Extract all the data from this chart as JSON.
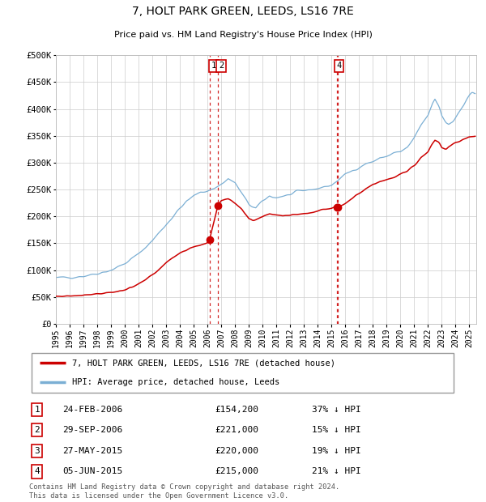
{
  "title": "7, HOLT PARK GREEN, LEEDS, LS16 7RE",
  "subtitle": "Price paid vs. HM Land Registry's House Price Index (HPI)",
  "ylim": [
    0,
    500000
  ],
  "yticks": [
    0,
    50000,
    100000,
    150000,
    200000,
    250000,
    300000,
    350000,
    400000,
    450000,
    500000
  ],
  "xlim_start": 1995.0,
  "xlim_end": 2025.5,
  "hpi_color": "#7bafd4",
  "price_color": "#cc0000",
  "vline_color": "#cc0000",
  "grid_color": "#cccccc",
  "background_color": "#ffffff",
  "legend_label_price": "7, HOLT PARK GREEN, LEEDS, LS16 7RE (detached house)",
  "legend_label_hpi": "HPI: Average price, detached house, Leeds",
  "transactions": [
    {
      "num": 1,
      "date": "24-FEB-2006",
      "price": 154200,
      "pct": "37%",
      "x": 2006.14
    },
    {
      "num": 2,
      "date": "29-SEP-2006",
      "price": 221000,
      "pct": "15%",
      "x": 2006.75
    },
    {
      "num": 3,
      "date": "27-MAY-2015",
      "price": 220000,
      "pct": "19%",
      "x": 2015.4
    },
    {
      "num": 4,
      "date": "05-JUN-2015",
      "price": 215000,
      "pct": "21%",
      "x": 2015.43
    }
  ],
  "label_boxes": [
    {
      "nums": [
        "1",
        "2"
      ],
      "x_center": 2006.45
    },
    {
      "nums": [
        "4"
      ],
      "x_center": 2015.55
    }
  ],
  "table_rows": [
    {
      "num": 1,
      "date": "24-FEB-2006",
      "price": "£154,200",
      "info": "37% ↓ HPI"
    },
    {
      "num": 2,
      "date": "29-SEP-2006",
      "price": "£221,000",
      "info": "15% ↓ HPI"
    },
    {
      "num": 3,
      "date": "27-MAY-2015",
      "price": "£220,000",
      "info": "19% ↓ HPI"
    },
    {
      "num": 4,
      "date": "05-JUN-2015",
      "price": "£215,000",
      "info": "21% ↓ HPI"
    }
  ],
  "footer": "Contains HM Land Registry data © Crown copyright and database right 2024.\nThis data is licensed under the Open Government Licence v3.0.",
  "hpi_anchors": [
    [
      1995.0,
      85000
    ],
    [
      1996.0,
      87000
    ],
    [
      1997.0,
      89000
    ],
    [
      1998.0,
      94000
    ],
    [
      1999.0,
      100000
    ],
    [
      2000.0,
      112000
    ],
    [
      2001.0,
      130000
    ],
    [
      2002.0,
      155000
    ],
    [
      2003.0,
      185000
    ],
    [
      2004.0,
      215000
    ],
    [
      2004.5,
      228000
    ],
    [
      2005.0,
      238000
    ],
    [
      2005.5,
      245000
    ],
    [
      2006.0,
      248000
    ],
    [
      2006.5,
      252000
    ],
    [
      2007.0,
      260000
    ],
    [
      2007.5,
      270000
    ],
    [
      2008.0,
      262000
    ],
    [
      2008.5,
      242000
    ],
    [
      2009.0,
      222000
    ],
    [
      2009.5,
      215000
    ],
    [
      2010.0,
      228000
    ],
    [
      2010.5,
      238000
    ],
    [
      2011.0,
      235000
    ],
    [
      2011.5,
      238000
    ],
    [
      2012.0,
      240000
    ],
    [
      2012.5,
      245000
    ],
    [
      2013.0,
      248000
    ],
    [
      2013.5,
      250000
    ],
    [
      2014.0,
      252000
    ],
    [
      2014.5,
      255000
    ],
    [
      2015.0,
      258000
    ],
    [
      2015.5,
      268000
    ],
    [
      2016.0,
      278000
    ],
    [
      2016.5,
      285000
    ],
    [
      2017.0,
      292000
    ],
    [
      2017.5,
      298000
    ],
    [
      2018.0,
      302000
    ],
    [
      2018.5,
      308000
    ],
    [
      2019.0,
      312000
    ],
    [
      2019.5,
      318000
    ],
    [
      2020.0,
      320000
    ],
    [
      2020.5,
      328000
    ],
    [
      2021.0,
      345000
    ],
    [
      2021.5,
      370000
    ],
    [
      2022.0,
      388000
    ],
    [
      2022.3,
      408000
    ],
    [
      2022.5,
      418000
    ],
    [
      2022.8,
      405000
    ],
    [
      2023.0,
      388000
    ],
    [
      2023.3,
      375000
    ],
    [
      2023.5,
      372000
    ],
    [
      2023.8,
      378000
    ],
    [
      2024.0,
      385000
    ],
    [
      2024.3,
      395000
    ],
    [
      2024.6,
      408000
    ],
    [
      2024.8,
      418000
    ],
    [
      2025.0,
      425000
    ],
    [
      2025.2,
      430000
    ],
    [
      2025.4,
      428000
    ]
  ],
  "price_anchors": [
    [
      1995.0,
      51000
    ],
    [
      1995.5,
      51500
    ],
    [
      1996.0,
      52000
    ],
    [
      1996.5,
      52500
    ],
    [
      1997.0,
      54000
    ],
    [
      1997.5,
      55000
    ],
    [
      1998.0,
      56000
    ],
    [
      1998.5,
      57000
    ],
    [
      1999.0,
      59000
    ],
    [
      1999.5,
      60000
    ],
    [
      2000.0,
      63000
    ],
    [
      2000.5,
      67000
    ],
    [
      2001.0,
      74000
    ],
    [
      2001.5,
      82000
    ],
    [
      2002.0,
      91000
    ],
    [
      2002.5,
      102000
    ],
    [
      2003.0,
      113000
    ],
    [
      2003.5,
      124000
    ],
    [
      2004.0,
      132000
    ],
    [
      2004.5,
      138000
    ],
    [
      2005.0,
      143000
    ],
    [
      2005.5,
      147000
    ],
    [
      2006.0,
      151000
    ],
    [
      2006.14,
      154200
    ],
    [
      2006.75,
      221000
    ],
    [
      2007.0,
      230000
    ],
    [
      2007.5,
      232000
    ],
    [
      2008.0,
      224000
    ],
    [
      2008.5,
      212000
    ],
    [
      2009.0,
      195000
    ],
    [
      2009.3,
      192000
    ],
    [
      2010.0,
      200000
    ],
    [
      2010.5,
      205000
    ],
    [
      2011.0,
      203000
    ],
    [
      2011.5,
      202000
    ],
    [
      2012.0,
      202000
    ],
    [
      2012.5,
      204000
    ],
    [
      2013.0,
      205000
    ],
    [
      2013.5,
      207000
    ],
    [
      2014.0,
      210000
    ],
    [
      2014.5,
      213000
    ],
    [
      2015.0,
      216000
    ],
    [
      2015.4,
      220000
    ],
    [
      2015.43,
      215000
    ],
    [
      2015.5,
      218000
    ],
    [
      2016.0,
      225000
    ],
    [
      2016.5,
      233000
    ],
    [
      2017.0,
      243000
    ],
    [
      2017.5,
      252000
    ],
    [
      2018.0,
      260000
    ],
    [
      2018.5,
      265000
    ],
    [
      2019.0,
      268000
    ],
    [
      2019.5,
      272000
    ],
    [
      2020.0,
      278000
    ],
    [
      2020.5,
      285000
    ],
    [
      2021.0,
      295000
    ],
    [
      2021.5,
      310000
    ],
    [
      2022.0,
      320000
    ],
    [
      2022.3,
      335000
    ],
    [
      2022.5,
      342000
    ],
    [
      2022.8,
      338000
    ],
    [
      2023.0,
      328000
    ],
    [
      2023.3,
      325000
    ],
    [
      2023.5,
      330000
    ],
    [
      2023.8,
      335000
    ],
    [
      2024.0,
      338000
    ],
    [
      2024.3,
      340000
    ],
    [
      2024.5,
      342000
    ],
    [
      2024.8,
      345000
    ],
    [
      2025.0,
      347000
    ],
    [
      2025.4,
      350000
    ]
  ]
}
